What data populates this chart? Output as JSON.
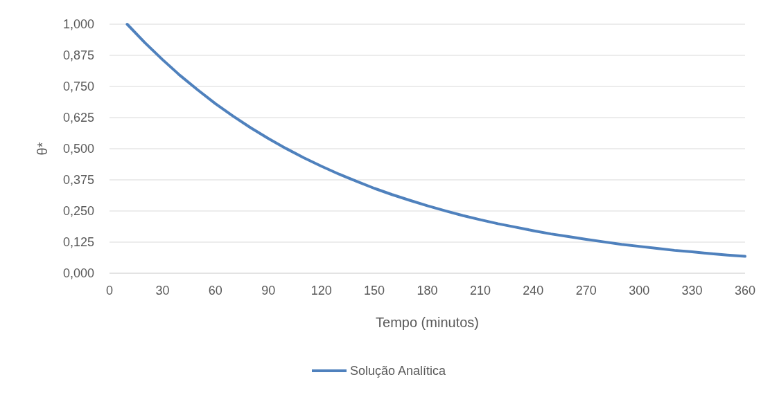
{
  "chart_data": {
    "type": "line",
    "xlabel": "Tempo (minutos)",
    "ylabel": "θ*",
    "x": [
      10,
      20,
      30,
      40,
      50,
      60,
      70,
      80,
      90,
      100,
      110,
      120,
      130,
      140,
      150,
      160,
      170,
      180,
      190,
      200,
      210,
      220,
      230,
      240,
      250,
      260,
      270,
      280,
      290,
      300,
      310,
      320,
      330,
      340,
      350,
      360
    ],
    "series": [
      {
        "name": "Solução Analítica",
        "color": "#4f81bd",
        "values": [
          1.0,
          0.926,
          0.858,
          0.794,
          0.736,
          0.681,
          0.631,
          0.584,
          0.541,
          0.501,
          0.464,
          0.43,
          0.398,
          0.369,
          0.341,
          0.316,
          0.293,
          0.271,
          0.251,
          0.232,
          0.215,
          0.199,
          0.185,
          0.171,
          0.158,
          0.147,
          0.136,
          0.126,
          0.116,
          0.108,
          0.1,
          0.092,
          0.086,
          0.079,
          0.073,
          0.068
        ]
      }
    ],
    "xlim": [
      0,
      360
    ],
    "xticks": [
      0,
      30,
      60,
      90,
      120,
      150,
      180,
      210,
      240,
      270,
      300,
      330,
      360
    ],
    "ylim": [
      0,
      1
    ],
    "yticks": [
      {
        "value": 0,
        "label": "0,000"
      },
      {
        "value": 0.125,
        "label": "0,125"
      },
      {
        "value": 0.25,
        "label": "0,250"
      },
      {
        "value": 0.375,
        "label": "0,375"
      },
      {
        "value": 0.5,
        "label": "0,500"
      },
      {
        "value": 0.625,
        "label": "0,625"
      },
      {
        "value": 0.75,
        "label": "0,750"
      },
      {
        "value": 0.875,
        "label": "0,875"
      },
      {
        "value": 1,
        "label": "1,000"
      }
    ],
    "grid": "y",
    "legend": "bottom",
    "marker": "none",
    "line_style": "solid"
  }
}
